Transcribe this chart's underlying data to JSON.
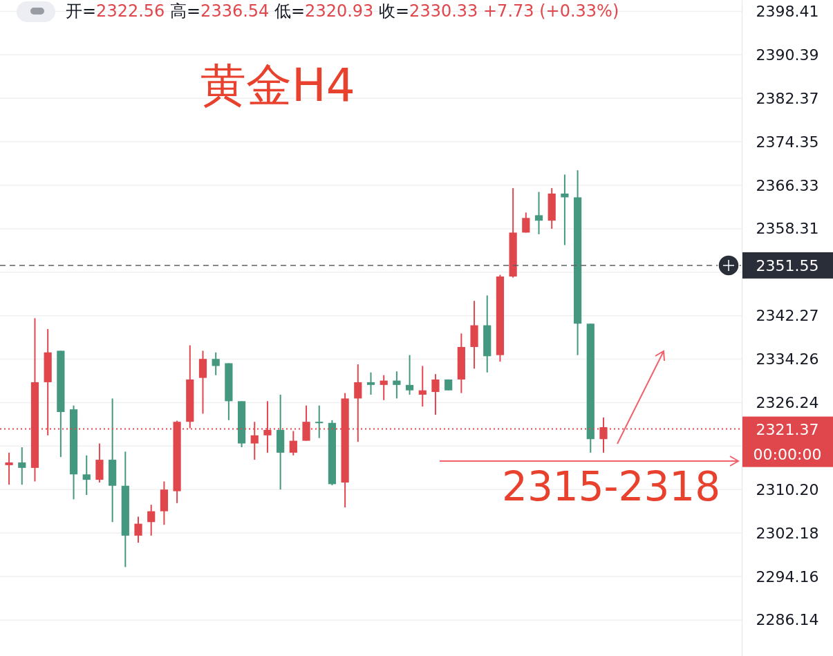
{
  "chart_data": {
    "type": "candlestick",
    "title": "黄金H4",
    "subtitle": "开=2322.56 高=2336.54 低=2320.93 收=2330.33 +7.73 (+0.33%)",
    "annotations": [
      "2315-2318",
      "00:00:00"
    ],
    "categories": [
      null,
      null,
      null,
      null,
      null,
      null,
      null,
      null,
      null,
      null,
      null,
      null,
      null,
      null,
      null,
      null,
      null,
      null,
      null,
      null,
      null,
      null,
      null,
      null,
      null,
      null,
      null,
      null,
      null,
      null,
      null,
      null,
      null,
      null,
      null,
      null,
      null,
      null,
      null,
      null,
      null,
      null,
      null,
      null,
      null,
      null,
      null,
      null,
      null,
      null,
      null,
      null,
      null,
      null,
      null,
      null,
      null
    ],
    "ohlc": [
      [
        2314.7,
        2317.0,
        2311.1,
        2315.2
      ],
      [
        2315.2,
        2318.0,
        2311.1,
        2314.2
      ],
      [
        2314.2,
        2341.8,
        2311.7,
        2330.0
      ],
      [
        2330.0,
        2339.8,
        2320.2,
        2335.5
      ],
      [
        2335.8,
        2335.8,
        2316.2,
        2324.5
      ],
      [
        2325.0,
        2325.7,
        2308.4,
        2313.0
      ],
      [
        2313.0,
        2316.5,
        2309.2,
        2312.0
      ],
      [
        2312.0,
        2318.7,
        2311.5,
        2315.7
      ],
      [
        2315.7,
        2327.0,
        2304.2,
        2310.9
      ],
      [
        2310.9,
        2317.2,
        2295.9,
        2301.7
      ],
      [
        2301.7,
        2305.2,
        2300.4,
        2303.9
      ],
      [
        2304.2,
        2307.4,
        2301.7,
        2306.2
      ],
      [
        2306.2,
        2311.7,
        2303.7,
        2310.2
      ],
      [
        2309.9,
        2322.9,
        2307.7,
        2322.7
      ],
      [
        2322.7,
        2336.8,
        2321.5,
        2330.5
      ],
      [
        2330.8,
        2335.8,
        2324.2,
        2334.3
      ],
      [
        2334.3,
        2335.5,
        2331.3,
        2333.0
      ],
      [
        2333.5,
        2333.5,
        2323.0,
        2326.5
      ],
      [
        2326.5,
        2326.5,
        2318.0,
        2318.7
      ],
      [
        2318.7,
        2322.7,
        2315.7,
        2320.2
      ],
      [
        2320.2,
        2326.5,
        2317.0,
        2321.2
      ],
      [
        2321.2,
        2327.7,
        2310.2,
        2317.0
      ],
      [
        2317.0,
        2321.0,
        2316.5,
        2319.2
      ],
      [
        2319.2,
        2325.7,
        2319.2,
        2322.7
      ],
      [
        2322.7,
        2325.7,
        2319.7,
        2322.5
      ],
      [
        2322.5,
        2323.0,
        2311.0,
        2311.2
      ],
      [
        2311.5,
        2328.0,
        2306.9,
        2327.0
      ],
      [
        2327.0,
        2333.3,
        2319.0,
        2330.0
      ],
      [
        2330.0,
        2331.8,
        2327.7,
        2329.5
      ],
      [
        2329.5,
        2331.3,
        2326.7,
        2330.3
      ],
      [
        2330.3,
        2332.0,
        2327.0,
        2329.5
      ],
      [
        2329.5,
        2335.0,
        2327.7,
        2328.5
      ],
      [
        2327.7,
        2333.0,
        2325.5,
        2328.5
      ],
      [
        2328.2,
        2331.5,
        2324.0,
        2330.5
      ],
      [
        2330.5,
        2330.5,
        2328.5,
        2328.5
      ],
      [
        2330.5,
        2339.0,
        2328.0,
        2336.5
      ],
      [
        2336.5,
        2345.0,
        2332.5,
        2340.5
      ],
      [
        2340.5,
        2346.0,
        2331.8,
        2334.8
      ],
      [
        2335.0,
        2349.8,
        2333.8,
        2349.5
      ],
      [
        2349.5,
        2365.8,
        2349.3,
        2357.6
      ],
      [
        2357.6,
        2361.3,
        2357.6,
        2360.3
      ],
      [
        2360.8,
        2365.1,
        2357.3,
        2359.8
      ],
      [
        2359.8,
        2365.8,
        2358.3,
        2364.8
      ],
      [
        2364.8,
        2368.3,
        2355.3,
        2364.1
      ],
      [
        2364.1,
        2369.1,
        2335.0,
        2340.8
      ],
      [
        2340.8,
        2340.8,
        2317.0,
        2319.5
      ],
      [
        2319.5,
        2323.5,
        2317.0,
        2321.7
      ],
      null,
      null,
      null,
      null,
      null,
      null,
      null,
      null,
      null,
      null
    ],
    "colors": [
      "#e0474c",
      "#44987f",
      "#e0474c",
      "#e0474c",
      "#44987f",
      "#44987f",
      "#44987f",
      "#e0474c",
      "#44987f",
      "#44987f",
      "#e0474c",
      "#e0474c",
      "#e0474c",
      "#e0474c",
      "#e0474c",
      "#e0474c",
      "#44987f",
      "#44987f",
      "#44987f",
      "#e0474c",
      "#e0474c",
      "#44987f",
      "#e0474c",
      "#e0474c",
      "#44987f",
      "#44987f",
      "#e0474c",
      "#e0474c",
      "#44987f",
      "#e0474c",
      "#44987f",
      "#44987f",
      "#e0474c",
      "#e0474c",
      "#44987f",
      "#e0474c",
      "#e0474c",
      "#44987f",
      "#e0474c",
      "#e0474c",
      "#e0474c",
      "#44987f",
      "#e0474c",
      "#44987f",
      "#44987f",
      "#44987f",
      "#e0474c",
      null,
      null,
      null,
      null,
      null,
      null,
      null,
      null,
      null,
      null
    ],
    "ylim": [
      2279.5,
      2400.5
    ],
    "yticks": [
      2398.41,
      2390.39,
      2382.37,
      2374.35,
      2366.33,
      2358.31,
      {
        "value": 2350.29,
        "label": null
      },
      2342.27,
      2334.26,
      2326.24,
      {
        "value": 2318.22,
        "label": null
      },
      {
        "value": 2310.2,
        "label": "2310.20"
      },
      2302.18,
      2294.16,
      2286.14
    ],
    "grid": "y",
    "ref_lines": [
      {
        "axis": "y",
        "value": 2351.55,
        "label": "2351.55",
        "color": "#5d606b",
        "line_style": "dashed"
      },
      {
        "axis": "y",
        "value": 2321.37,
        "label": "2321.37",
        "color": "#e0474c",
        "line_style": "dotted"
      }
    ]
  }
}
